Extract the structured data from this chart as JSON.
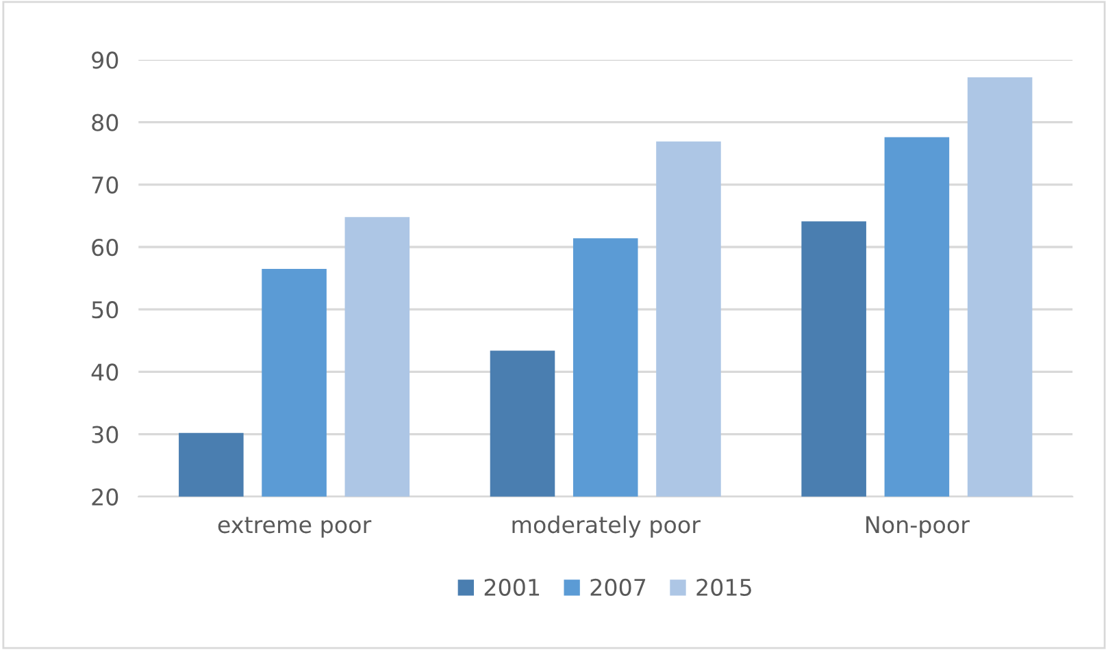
{
  "chart_data": {
    "type": "bar",
    "categories": [
      "extreme poor",
      "moderately poor",
      "Non-poor"
    ],
    "series": [
      {
        "name": "2001",
        "color": "#4a7eb0",
        "values": [
          30.2,
          43.4,
          64.1
        ]
      },
      {
        "name": "2007",
        "color": "#5b9bd5",
        "values": [
          56.5,
          61.4,
          77.6
        ]
      },
      {
        "name": "2015",
        "color": "#adc6e5",
        "values": [
          64.8,
          76.9,
          87.2
        ]
      }
    ],
    "ylim": [
      20,
      90
    ],
    "yticks": [
      20,
      30,
      40,
      50,
      60,
      70,
      80,
      90
    ],
    "grid": "y",
    "legend": "bottom"
  }
}
